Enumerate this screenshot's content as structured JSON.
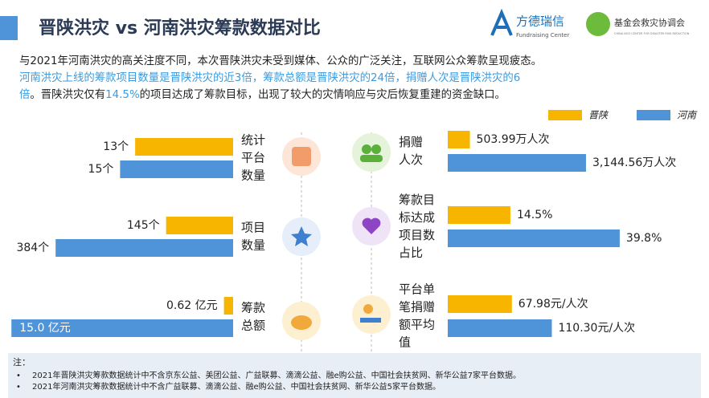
{
  "header": {
    "title": "晋陕洪灾 vs 河南洪灾筹款数据对比",
    "logo1": "方德瑞信",
    "logo1_sub": "Fundraising Center",
    "logo2": "基金会救灾协调会",
    "logo2_sub": "CHINA NGO CENTER FOR DISASTER RISK REDUCTION"
  },
  "intro": [
    [
      {
        "text": "与2021年河南洪灾的高关注度不同，本次晋陕洪灾未受到媒体、公众的广泛关注，互联网公众筹款呈现疲态。",
        "highlight": false
      }
    ],
    [
      {
        "text": "河南洪灾上线的筹款项目数量是晋陕洪灾的近3倍，筹款总额是晋陕洪灾的24倍，捐赠人次是晋陕洪灾的6",
        "highlight": true
      }
    ],
    [
      {
        "text": "倍",
        "highlight": true
      },
      {
        "text": "。晋陕洪灾仅有",
        "highlight": false
      },
      {
        "text": "14.5%",
        "highlight": true
      },
      {
        "text": "的项目达成了筹款目标，出现了较大的灾情响应与灾后恢复重建的资金缺口。",
        "highlight": false
      }
    ]
  ],
  "legend": [
    {
      "name": "晋陕",
      "color": "#f7b500"
    },
    {
      "name": "河南",
      "color": "#4f94d8"
    }
  ],
  "chart_data": [
    {
      "type": "bar",
      "side": "left",
      "title": [
        "统计",
        "平台",
        "数量"
      ],
      "values": [
        13,
        15
      ],
      "value_labels": [
        "13个",
        "15个"
      ],
      "xlim": [
        0,
        16
      ]
    },
    {
      "type": "bar",
      "side": "left",
      "title": [
        "项目",
        "数量"
      ],
      "values": [
        145,
        384
      ],
      "value_labels": [
        "145个",
        "384个"
      ],
      "xlim": [
        0,
        400
      ]
    },
    {
      "type": "bar",
      "side": "left",
      "title": [
        "筹款",
        "总额"
      ],
      "values": [
        0.62,
        15.0
      ],
      "value_labels": [
        "0.62 亿元",
        "15.0 亿元"
      ],
      "xlim": [
        0,
        15.5
      ]
    },
    {
      "type": "bar",
      "side": "right",
      "title": [
        "捐赠",
        "人次"
      ],
      "values": [
        503.99,
        3144.56
      ],
      "value_labels": [
        "503.99万人次",
        "3,144.56万人次"
      ],
      "xlim": [
        0,
        3200
      ]
    },
    {
      "type": "bar",
      "side": "right",
      "title": [
        "筹款目",
        "标达成",
        "项目数",
        "占比"
      ],
      "values": [
        14.5,
        39.8
      ],
      "value_labels": [
        "14.5%",
        "39.8%"
      ],
      "xlim": [
        0,
        40
      ]
    },
    {
      "type": "bar",
      "side": "right",
      "title": [
        "平台单",
        "笔捐赠",
        "额平均",
        "值"
      ],
      "values": [
        67.98,
        110.3
      ],
      "value_labels": [
        "67.98元/人次",
        "110.30元/人次"
      ],
      "xlim": [
        0,
        115
      ]
    }
  ],
  "notes": {
    "label": "注：",
    "items": [
      "2021年晋陕洪灾筹款数据统计中不含京东公益、美团公益、广益联募、滴滴公益、融e购公益、中国社会扶贫网、新华公益7家平台数据。",
      "2021年河南洪灾筹款数据统计中不含广益联募、滴滴公益、融e购公益、中国社会扶贫网、新华公益5家平台数据。"
    ]
  }
}
